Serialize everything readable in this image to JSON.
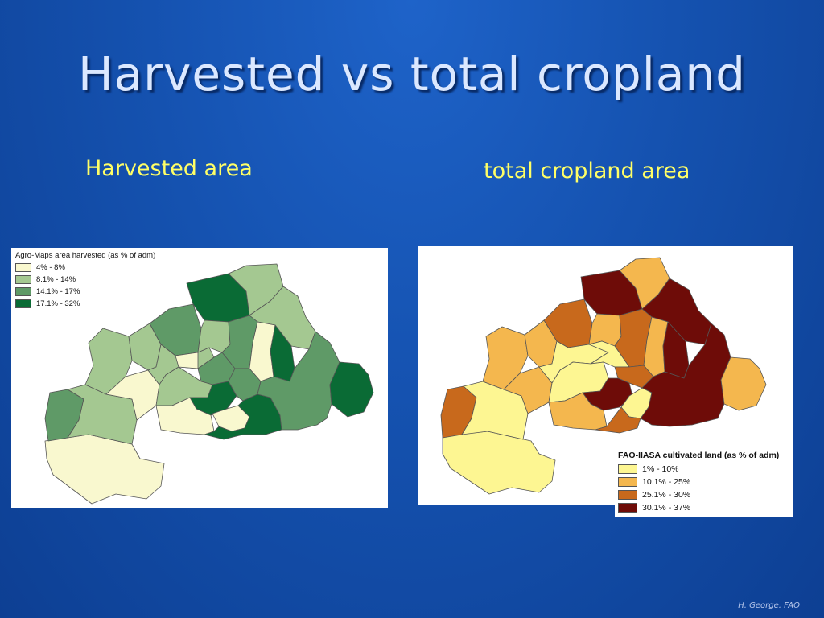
{
  "slide": {
    "title": "Harvested vs total cropland",
    "subtitle_left": "Harvested area",
    "subtitle_right": "total cropland area",
    "credit": "H. George, FAO"
  },
  "map_left": {
    "legend_title": "Agro-Maps area harvested  (as % of adm)",
    "classes": [
      {
        "label": "4% - 8%",
        "color": "#f9f8cf"
      },
      {
        "label": "8.1% - 14%",
        "color": "#a4c891"
      },
      {
        "label": "14.1% - 17%",
        "color": "#5f9a67"
      },
      {
        "label": "17.1% - 32%",
        "color": "#0a6b35"
      }
    ]
  },
  "map_right": {
    "legend_title": "FAO-IIASA cultivated land (as % of adm)",
    "classes": [
      {
        "label": "1% - 10%",
        "color": "#fdf692"
      },
      {
        "label": "10.1% - 25%",
        "color": "#f4b74e"
      },
      {
        "label": "25.1% - 30%",
        "color": "#c8691c"
      },
      {
        "label": "30.1% - 37%",
        "color": "#6e0c08"
      }
    ]
  }
}
